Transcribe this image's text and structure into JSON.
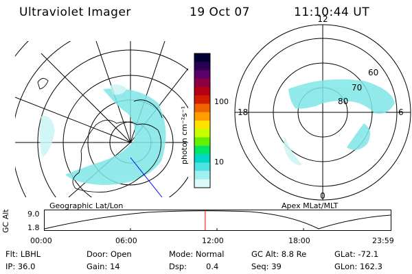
{
  "header": {
    "instrument": "Ultraviolet Imager",
    "date": "19 Oct 07",
    "time": "11:10:44 UT"
  },
  "left_panel": {
    "label": "Geographic Lat/Lon"
  },
  "right_panel": {
    "label": "Apex MLat/MLT",
    "mlt_labels": {
      "top": "12",
      "left": "18",
      "right": "6",
      "bottom": "0"
    },
    "lat_labels": [
      "60",
      "70",
      "80"
    ]
  },
  "colorbar": {
    "unit_label": "photon cm⁻²s⁻¹",
    "ticks": [
      "100",
      "10"
    ],
    "colors": [
      "#000033",
      "#2a0050",
      "#5a006a",
      "#8c0040",
      "#b40014",
      "#d21e00",
      "#f06400",
      "#ffa000",
      "#ffe000",
      "#c8ff00",
      "#64f000",
      "#00e664",
      "#00d7c8",
      "#50e1e1",
      "#a0f0f0",
      "#dcfafa"
    ]
  },
  "altitude_plot": {
    "ylabel": "GC Alt",
    "yticks": [
      "9.0",
      "1.8"
    ],
    "xticks": [
      "00:00",
      "06:00",
      "12:00",
      "18:00",
      "23:59"
    ],
    "current_time_fraction": 0.465,
    "marker_color": "#ff0000"
  },
  "info": {
    "row1": {
      "flt": "Flt: LBHL",
      "door": "Door: Open",
      "mode": "Mode: Normal",
      "gcalt": "GC Alt: 8.8 Re",
      "glat": "GLat: -72.1"
    },
    "row2": {
      "ip": "IP: 36.0",
      "gain": "Gain: 14",
      "dsp_label": "Dsp:",
      "dsp_value": "0.4",
      "seq": "Seq: 39",
      "glon": "GLon: 162.3"
    }
  }
}
